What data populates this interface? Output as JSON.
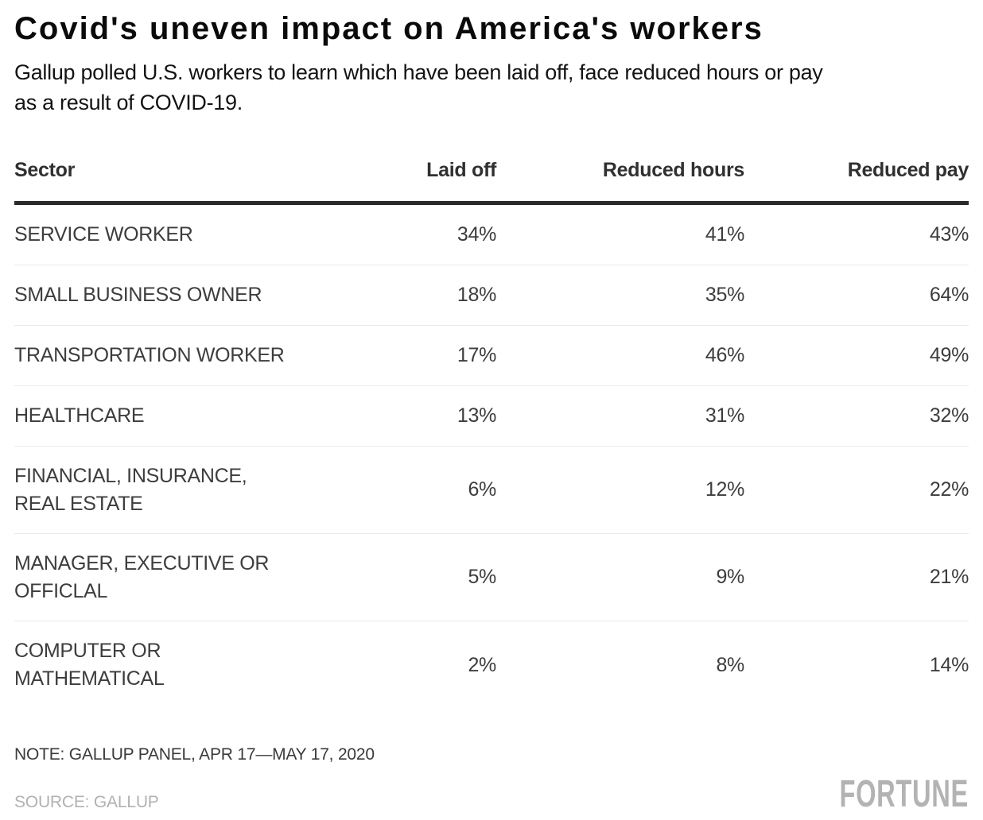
{
  "colors": {
    "background": "#ffffff",
    "title_text": "#0a0a0a",
    "body_text": "#3d3d3d",
    "header_rule": "#2b2b2b",
    "row_divider": "#e9e9e9",
    "muted_text": "#b1b1b1"
  },
  "chart_data": {
    "type": "table",
    "title": "Covid's uneven impact on America's workers",
    "subtitle": "Gallup polled U.S. workers to learn which have been laid off, face reduced hours or pay\nas a result of COVID-19.",
    "columns": [
      "Sector",
      "Laid off",
      "Reduced hours",
      "Reduced pay"
    ],
    "rows": [
      {
        "sector": "SERVICE WORKER",
        "values": [
          "34%",
          "41%",
          "43%"
        ]
      },
      {
        "sector": "SMALL BUSINESS OWNER",
        "values": [
          "18%",
          "35%",
          "64%"
        ]
      },
      {
        "sector": "TRANSPORTATION WORKER",
        "values": [
          "17%",
          "46%",
          "49%"
        ]
      },
      {
        "sector": "HEALTHCARE",
        "values": [
          "13%",
          "31%",
          "32%"
        ]
      },
      {
        "sector": "FINANCIAL, INSURANCE,\nREAL ESTATE",
        "values": [
          "6%",
          "12%",
          "22%"
        ]
      },
      {
        "sector": "MANAGER, EXECUTIVE OR\nOFFICLAL",
        "values": [
          "5%",
          "9%",
          "21%"
        ]
      },
      {
        "sector": "COMPUTER OR\nMATHEMATICAL",
        "values": [
          "2%",
          "8%",
          "14%"
        ]
      }
    ],
    "note": "NOTE: GALLUP PANEL, APR 17—MAY 17, 2020",
    "source": "SOURCE: GALLUP",
    "brand": "FORTUNE"
  }
}
